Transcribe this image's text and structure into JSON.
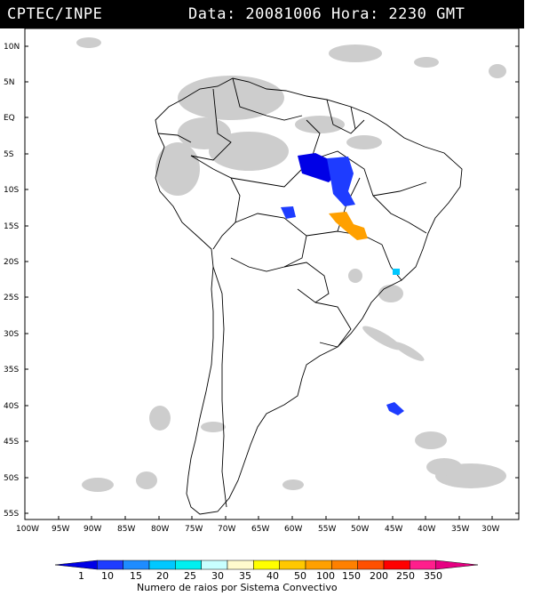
{
  "header": {
    "source": "CPTEC/INPE",
    "datetime": "Data: 20081006 Hora: 2230 GMT"
  },
  "map": {
    "lat_labels": [
      "10N",
      "5N",
      "EQ",
      "5S",
      "10S",
      "15S",
      "20S",
      "25S",
      "30S",
      "35S",
      "40S",
      "45S",
      "50S",
      "55S"
    ],
    "lon_labels": [
      "100W",
      "95W",
      "90W",
      "85W",
      "80W",
      "75W",
      "70W",
      "65W",
      "60W",
      "55W",
      "50W",
      "45W",
      "40W",
      "35W",
      "30W"
    ],
    "lat_range": [
      -56,
      12
    ],
    "lon_range": [
      -100,
      -28
    ],
    "colors": {
      "land_border": "#000000",
      "cloud": "#c8c8c8",
      "background": "#ffffff"
    }
  },
  "legend": {
    "labels": [
      "1",
      "10",
      "15",
      "20",
      "25",
      "30",
      "35",
      "40",
      "50",
      "100",
      "150",
      "200",
      "250",
      "350"
    ],
    "colors": [
      "#0000e6",
      "#1e3cff",
      "#1e8cff",
      "#00c8ff",
      "#00f0f0",
      "#c8ffff",
      "#fffacd",
      "#ffff00",
      "#ffc800",
      "#ffa000",
      "#ff8000",
      "#ff5000",
      "#ff0000",
      "#ff1e8c",
      "#e60082"
    ],
    "title": "Numero de raios por Sistema Convectivo"
  },
  "storms": [
    {
      "name": "central-brazil-north",
      "color": "#0000e6"
    },
    {
      "name": "central-brazil-north-2",
      "color": "#1e3cff"
    },
    {
      "name": "bolivia-border",
      "color": "#1e3cff"
    },
    {
      "name": "mato-grosso-orange",
      "color": "#ffa000"
    },
    {
      "name": "sao-paulo-cyan",
      "color": "#00c8ff"
    },
    {
      "name": "south-atlantic-blue",
      "color": "#1e3cff"
    }
  ]
}
